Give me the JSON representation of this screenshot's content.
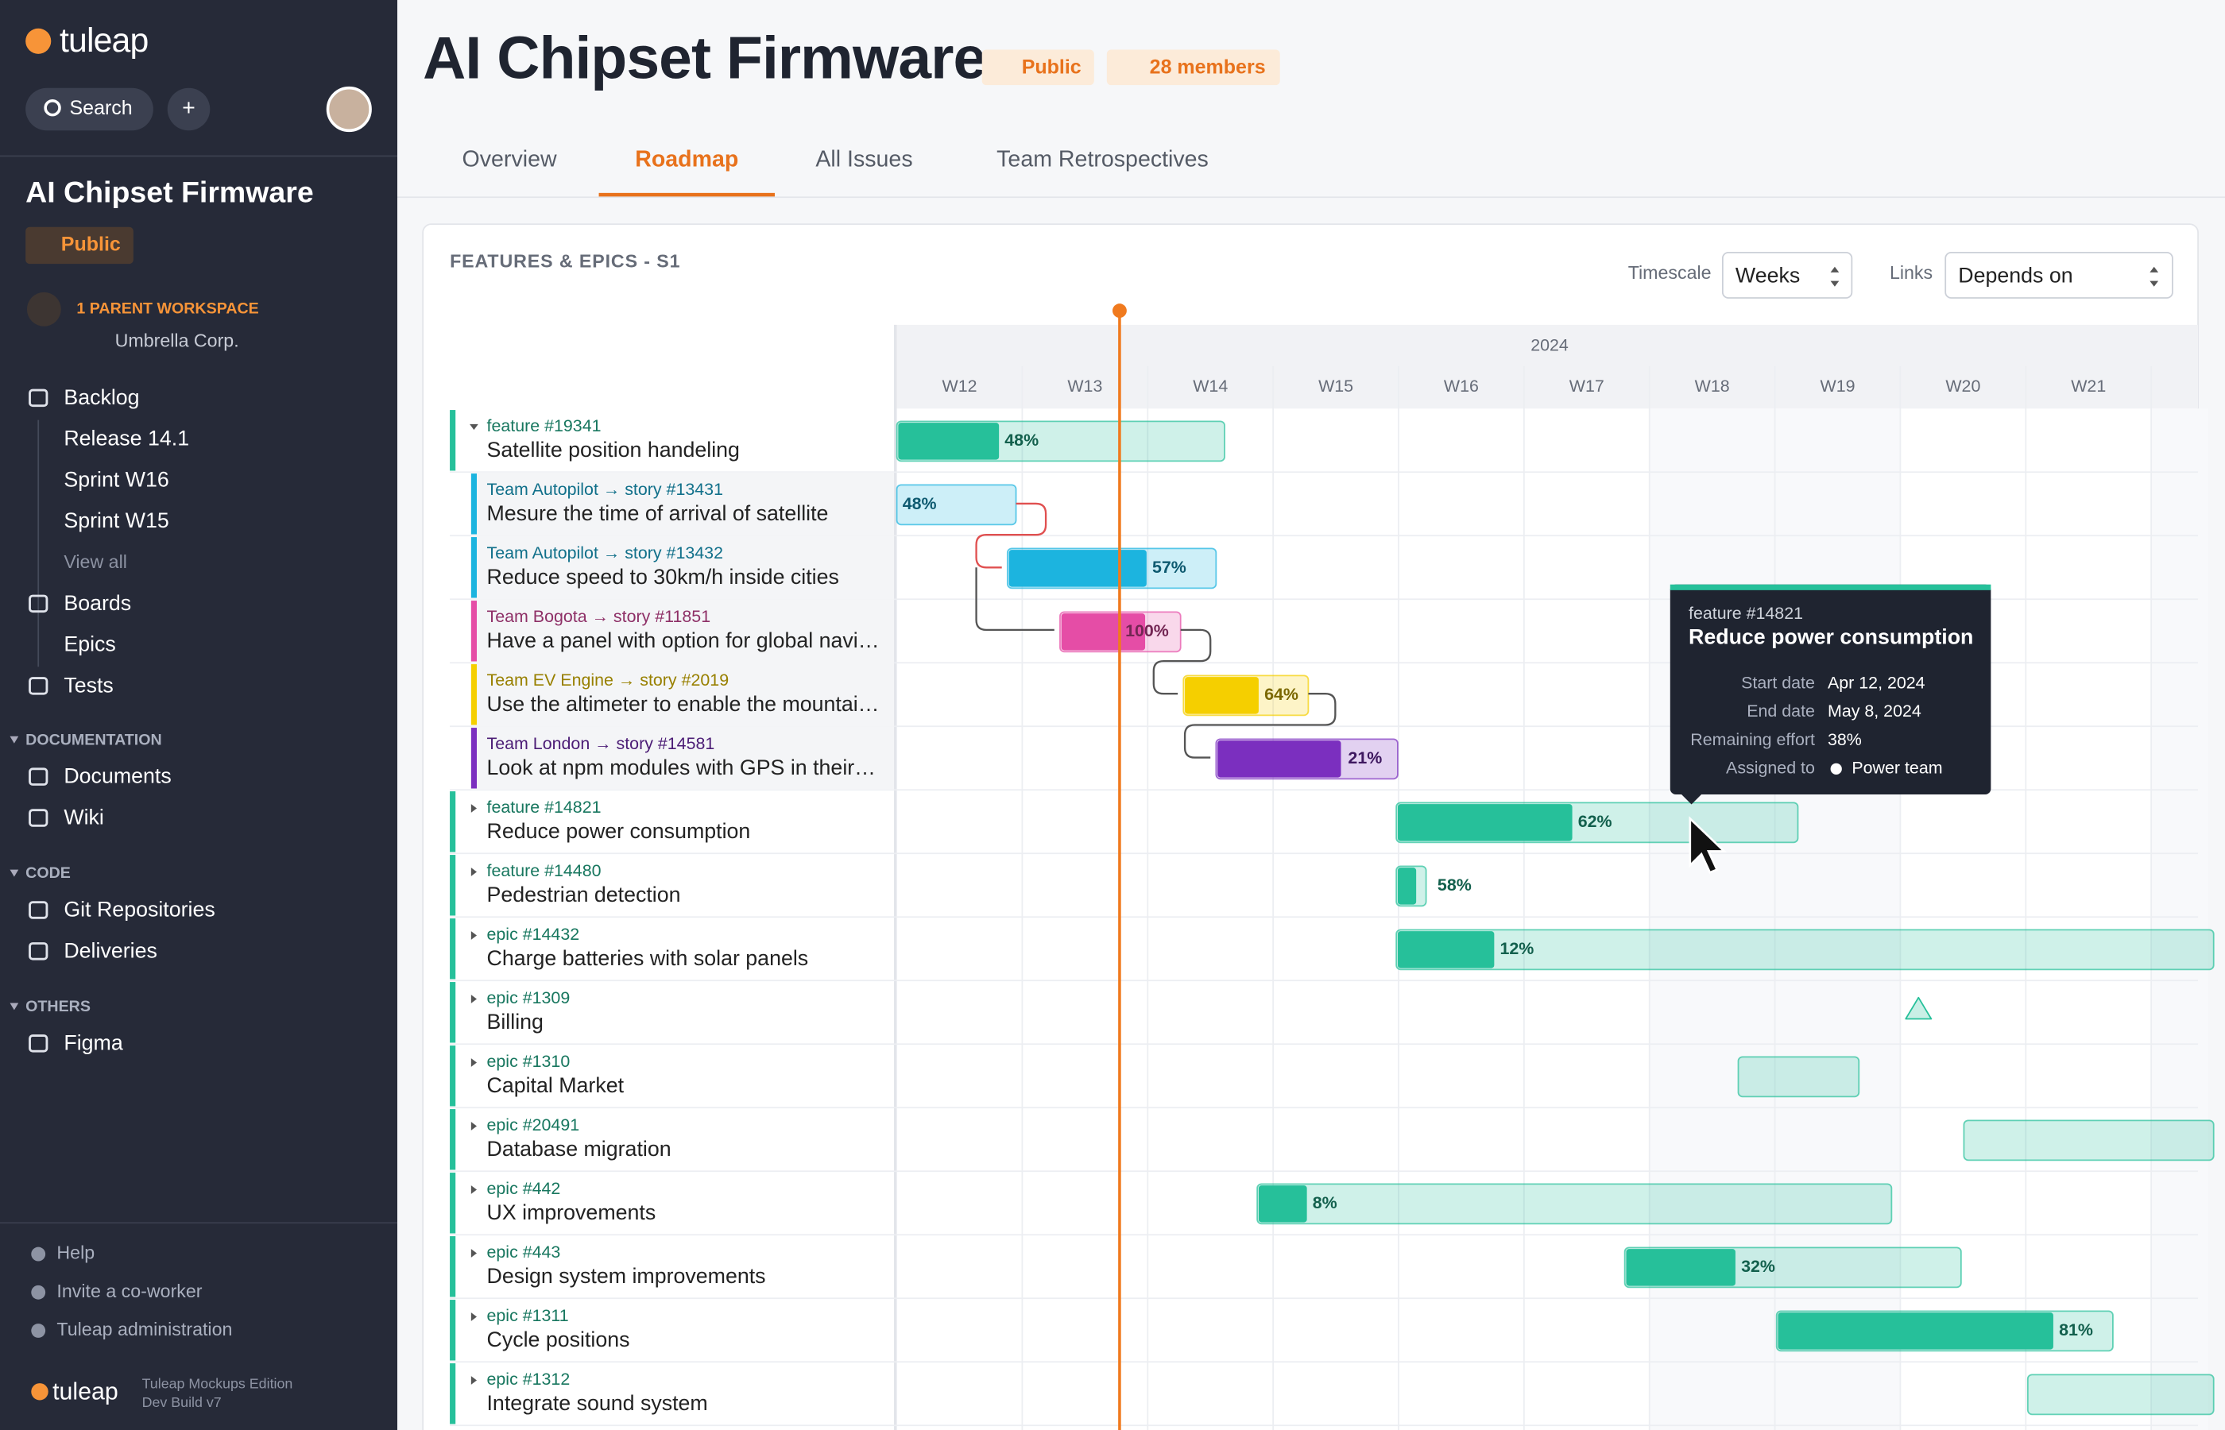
{
  "sidebar": {
    "logo": "tuleap",
    "search": "Search",
    "project": "AI Chipset Firmware",
    "visibility": "Public",
    "parent_label": "1 PARENT WORKSPACE",
    "parent_name": "Umbrella Corp.",
    "nav": [
      {
        "label": "Backlog",
        "children": [
          "Release 14.1",
          "Sprint W16",
          "Sprint W15",
          "View all"
        ]
      },
      {
        "label": "Boards",
        "children": [
          "Epics"
        ]
      },
      {
        "label": "Tests",
        "children": []
      }
    ],
    "sections": [
      {
        "title": "DOCUMENTATION",
        "items": [
          "Documents",
          "Wiki"
        ]
      },
      {
        "title": "CODE",
        "items": [
          "Git Repositories",
          "Deliveries"
        ]
      },
      {
        "title": "OTHERS",
        "items": [
          "Figma"
        ]
      }
    ],
    "footer": [
      "Help",
      "Invite a co-worker",
      "Tuleap administration"
    ],
    "edition": "Tuleap Mockups Edition",
    "build": "Dev Build v7"
  },
  "header": {
    "title": "AI Chipset Firmware",
    "visibility": "Public",
    "members": "28 members",
    "tabs": [
      "Overview",
      "Roadmap",
      "All Issues",
      "Team Retrospectives"
    ],
    "active_tab": 1
  },
  "roadmap": {
    "title": "FEATURES & EPICS - S1",
    "timescale_label": "Timescale",
    "timescale": "Weeks",
    "links_label": "Links",
    "links": "Depends on",
    "year": "2024",
    "weeks": [
      "W12",
      "W13",
      "W14",
      "W15",
      "W16",
      "W17",
      "W18",
      "W19",
      "W20",
      "W21"
    ],
    "rows": [
      {
        "ref": "feature #19341",
        "title": "Satellite position handeling",
        "progress": "48%",
        "color": "#26c09a"
      },
      {
        "ref": "Team Autopilot → story #13431",
        "title": "Mesure the time of arrival of satellite",
        "progress": "48%",
        "color": "#1cb4df"
      },
      {
        "ref": "Team Autopilot → story #13432",
        "title": "Reduce speed to 30km/h inside cities",
        "progress": "57%",
        "color": "#1cb4df"
      },
      {
        "ref": "Team Bogota → story #11851",
        "title": "Have a panel with option for global navi…",
        "progress": "100%",
        "color": "#e54da6"
      },
      {
        "ref": "Team EV Engine → story #2019",
        "title": "Use the altimeter to enable the mountai…",
        "progress": "64%",
        "color": "#f5cf00"
      },
      {
        "ref": "Team London → story #14581",
        "title": "Look at npm modules with GPS in their…",
        "progress": "21%",
        "color": "#7b2fbf"
      },
      {
        "ref": "feature #14821",
        "title": "Reduce power consumption",
        "progress": "62%",
        "color": "#26c09a"
      },
      {
        "ref": "feature #14480",
        "title": "Pedestrian detection",
        "progress": "58%",
        "color": "#26c09a"
      },
      {
        "ref": "epic #14432",
        "title": "Charge batteries with solar panels",
        "progress": "12%",
        "color": "#26c09a"
      },
      {
        "ref": "epic #1309",
        "title": "Billing",
        "color": "#26c09a"
      },
      {
        "ref": "epic #1310",
        "title": "Capital Market",
        "color": "#26c09a"
      },
      {
        "ref": "epic #20491",
        "title": "Database migration",
        "color": "#26c09a"
      },
      {
        "ref": "epic #442",
        "title": "UX improvements",
        "progress": "8%",
        "color": "#26c09a"
      },
      {
        "ref": "epic #443",
        "title": "Design system improvements",
        "progress": "32%",
        "color": "#26c09a"
      },
      {
        "ref": "epic #1311",
        "title": "Cycle positions",
        "progress": "81%",
        "color": "#26c09a"
      },
      {
        "ref": "epic #1312",
        "title": "Integrate sound system",
        "color": "#26c09a"
      }
    ],
    "tooltip": {
      "ref": "feature #14821",
      "title": "Reduce power consumption",
      "fields": [
        {
          "label": "Start date",
          "value": "Apr 12, 2024"
        },
        {
          "label": "End date",
          "value": "May 8, 2024"
        },
        {
          "label": "Remaining effort",
          "value": "38%"
        },
        {
          "label": "Assigned to",
          "value": "Power team"
        }
      ]
    }
  }
}
